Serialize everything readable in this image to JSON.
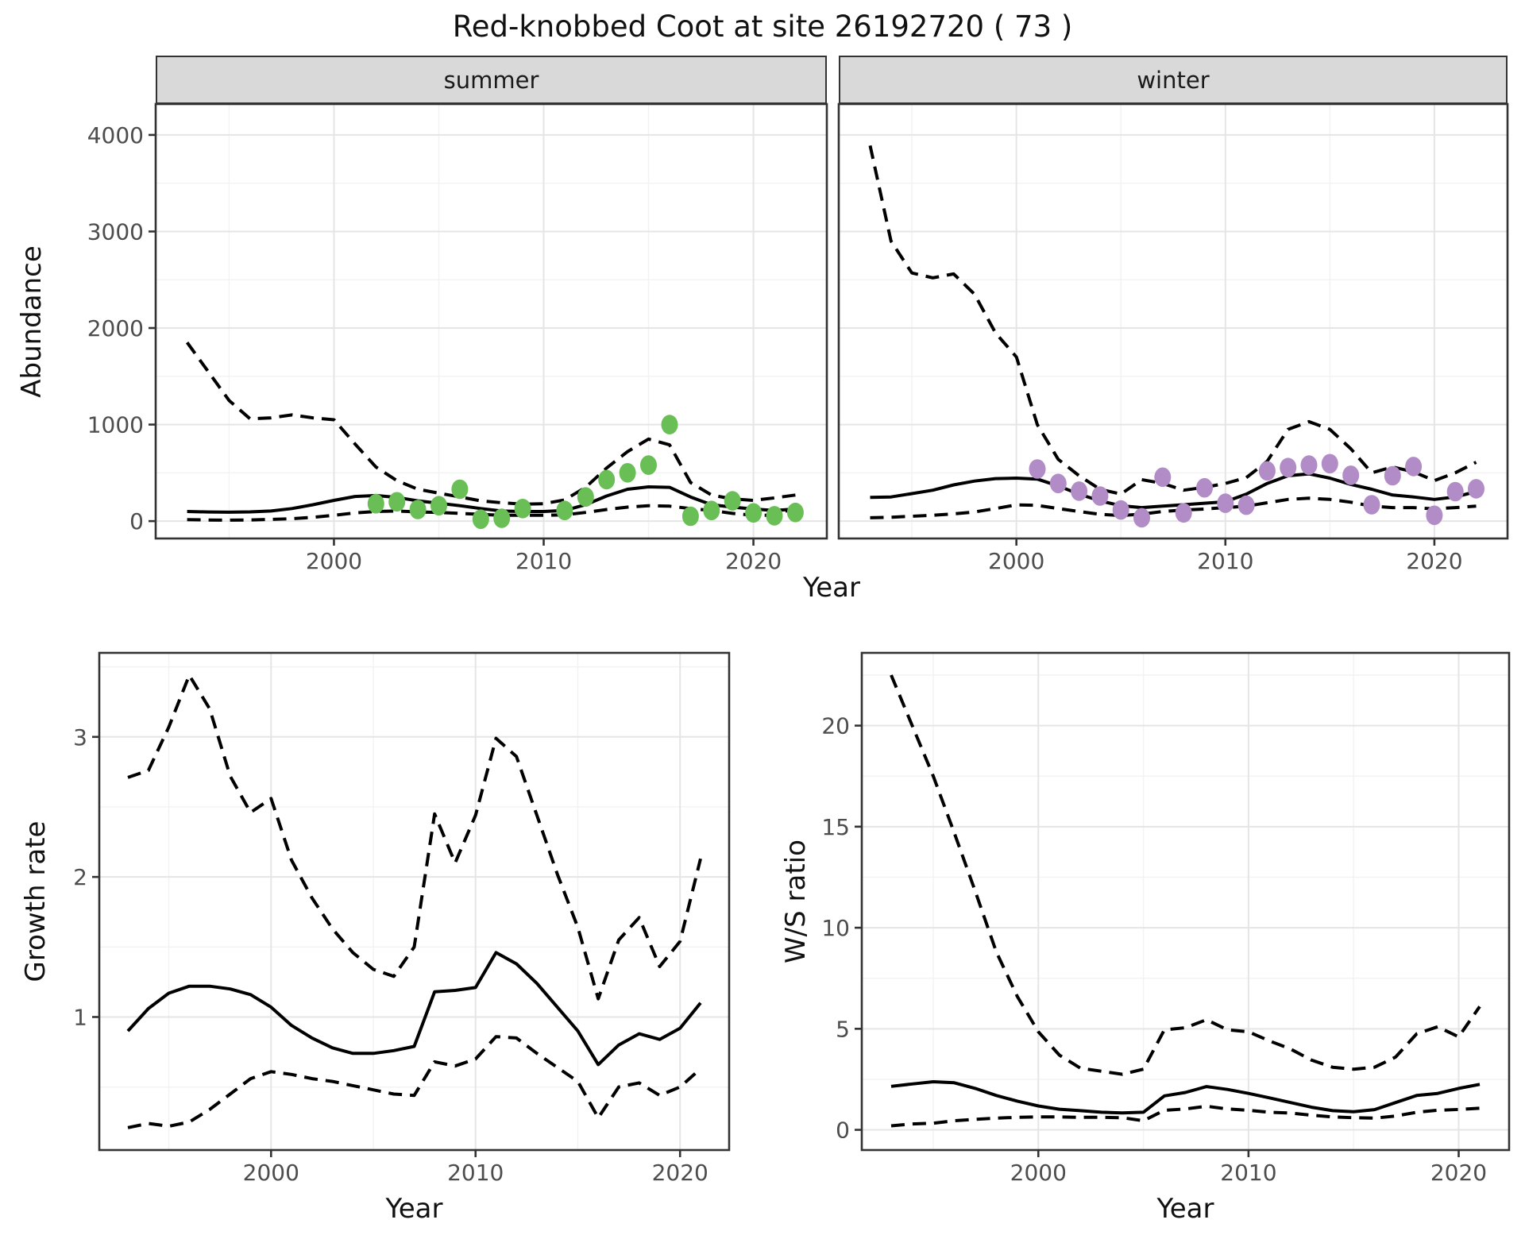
{
  "title": "Red-knobbed Coot at site 26192720 ( 73 )",
  "top_row": {
    "ylabel": "Abundance",
    "xlabel": "Year",
    "facets": [
      "summer",
      "winter"
    ]
  },
  "bottom_row": {
    "left_ylabel": "Growth rate",
    "right_ylabel": "W/S ratio",
    "xlabel": "Year"
  },
  "colors": {
    "line": "#000000",
    "summer_points": "#69be55",
    "winter_points": "#b18cc6",
    "strip_fill": "#d9d9d9",
    "panel_border": "#333333",
    "grid_major": "#e5e5e5",
    "grid_minor": "#f2f2f2",
    "tick_label": "#4d4d4d",
    "tick_mark": "#333333"
  },
  "chart_data": [
    {
      "id": "abundance_summer",
      "type": "line",
      "title": "summer",
      "xlabel": "Year",
      "ylabel": "Abundance",
      "xlim": [
        1991.5,
        2023.5
      ],
      "ylim": [
        -180,
        4320
      ],
      "xticks": [
        2000,
        2010,
        2020
      ],
      "xtick_labels": [
        "2000",
        "2010",
        "2020"
      ],
      "yticks": [
        0,
        1000,
        2000,
        3000,
        4000
      ],
      "ytick_labels": [
        "0",
        "1000",
        "2000",
        "3000",
        "4000"
      ],
      "grid": true,
      "legend": "none",
      "x": [
        1993,
        1994,
        1995,
        1996,
        1997,
        1998,
        1999,
        2000,
        2001,
        2002,
        2003,
        2004,
        2005,
        2006,
        2007,
        2008,
        2009,
        2010,
        2011,
        2012,
        2013,
        2014,
        2015,
        2016,
        2017,
        2018,
        2019,
        2020,
        2021,
        2022
      ],
      "series": [
        {
          "name": "upper_ci",
          "style": "dashed",
          "values": [
            1850,
            1550,
            1250,
            1060,
            1070,
            1100,
            1070,
            1050,
            800,
            560,
            420,
            330,
            290,
            250,
            210,
            190,
            175,
            180,
            220,
            350,
            550,
            720,
            850,
            790,
            400,
            270,
            230,
            215,
            240,
            270
          ]
        },
        {
          "name": "lower_ci",
          "style": "dashed",
          "values": [
            15,
            12,
            10,
            12,
            18,
            25,
            40,
            60,
            85,
            100,
            105,
            95,
            90,
            80,
            70,
            60,
            60,
            60,
            65,
            90,
            120,
            145,
            160,
            155,
            130,
            110,
            80,
            60,
            60,
            140
          ]
        },
        {
          "name": "mean",
          "style": "solid",
          "values": [
            100,
            95,
            92,
            96,
            105,
            130,
            170,
            215,
            255,
            265,
            245,
            210,
            185,
            160,
            130,
            105,
            100,
            100,
            110,
            170,
            260,
            330,
            355,
            350,
            250,
            170,
            145,
            125,
            110,
            125
          ]
        },
        {
          "name": "observed_counts",
          "points": true,
          "color": "#69be55",
          "x": [
            2002,
            2003,
            2004,
            2005,
            2006,
            2007,
            2008,
            2009,
            2011,
            2012,
            2013,
            2014,
            2015,
            2016,
            2017,
            2018,
            2019,
            2020,
            2021,
            2022
          ],
          "values": [
            180,
            200,
            120,
            160,
            330,
            20,
            30,
            130,
            110,
            250,
            430,
            500,
            580,
            1000,
            50,
            110,
            210,
            85,
            55,
            90
          ]
        }
      ]
    },
    {
      "id": "abundance_winter",
      "type": "line",
      "title": "winter",
      "xlabel": "Year",
      "ylabel": "Abundance",
      "xlim": [
        1991.5,
        2023.5
      ],
      "ylim": [
        -180,
        4320
      ],
      "xticks": [
        2000,
        2010,
        2020
      ],
      "xtick_labels": [
        "2000",
        "2010",
        "2020"
      ],
      "yticks": [
        0,
        1000,
        2000,
        3000,
        4000
      ],
      "ytick_labels": [
        "0",
        "1000",
        "2000",
        "3000",
        "4000"
      ],
      "grid": true,
      "legend": "none",
      "x": [
        1993,
        1994,
        1995,
        1996,
        1997,
        1998,
        1999,
        2000,
        2001,
        2002,
        2003,
        2004,
        2005,
        2006,
        2007,
        2008,
        2009,
        2010,
        2011,
        2012,
        2013,
        2014,
        2015,
        2016,
        2017,
        2018,
        2019,
        2020,
        2021,
        2022
      ],
      "series": [
        {
          "name": "upper_ci",
          "style": "dashed",
          "values": [
            3890,
            2900,
            2570,
            2520,
            2560,
            2350,
            1950,
            1700,
            1000,
            640,
            470,
            330,
            280,
            430,
            390,
            320,
            350,
            390,
            450,
            620,
            950,
            1030,
            950,
            750,
            500,
            560,
            510,
            420,
            500,
            610
          ]
        },
        {
          "name": "lower_ci",
          "style": "dashed",
          "values": [
            35,
            40,
            50,
            60,
            75,
            95,
            130,
            168,
            163,
            130,
            100,
            70,
            58,
            72,
            100,
            115,
            125,
            140,
            155,
            190,
            225,
            237,
            225,
            196,
            155,
            140,
            140,
            127,
            140,
            155
          ]
        },
        {
          "name": "mean",
          "style": "solid",
          "values": [
            245,
            250,
            285,
            320,
            375,
            415,
            440,
            445,
            435,
            365,
            280,
            210,
            160,
            140,
            155,
            170,
            185,
            200,
            280,
            390,
            470,
            490,
            445,
            380,
            330,
            270,
            250,
            225,
            250,
            305
          ]
        },
        {
          "name": "observed_counts",
          "points": true,
          "color": "#b18cc6",
          "x": [
            2001,
            2002,
            2003,
            2004,
            2005,
            2006,
            2007,
            2008,
            2009,
            2010,
            2011,
            2012,
            2013,
            2014,
            2015,
            2016,
            2017,
            2018,
            2019,
            2020,
            2021,
            2022
          ],
          "values": [
            540,
            390,
            310,
            260,
            115,
            35,
            455,
            85,
            345,
            185,
            165,
            520,
            555,
            580,
            595,
            475,
            170,
            470,
            565,
            60,
            305,
            335
          ]
        }
      ]
    },
    {
      "id": "growth_rate",
      "type": "line",
      "title": "",
      "xlabel": "Year",
      "ylabel": "Growth rate",
      "xlim": [
        1991.6,
        2022.4
      ],
      "ylim": [
        0.05,
        3.6
      ],
      "xticks": [
        2000,
        2010,
        2020
      ],
      "xtick_labels": [
        "2000",
        "2010",
        "2020"
      ],
      "yticks": [
        1,
        2,
        3
      ],
      "ytick_labels": [
        "1",
        "2",
        "3"
      ],
      "grid": true,
      "legend": "none",
      "x": [
        1993,
        1994,
        1995,
        1996,
        1997,
        1998,
        1999,
        2000,
        2001,
        2002,
        2003,
        2004,
        2005,
        2006,
        2007,
        2008,
        2009,
        2010,
        2011,
        2012,
        2013,
        2014,
        2015,
        2016,
        2017,
        2018,
        2019,
        2020,
        2021
      ],
      "series": [
        {
          "name": "upper_ci",
          "style": "dashed",
          "values": [
            2.71,
            2.76,
            3.07,
            3.44,
            3.2,
            2.72,
            2.46,
            2.56,
            2.12,
            1.85,
            1.63,
            1.46,
            1.34,
            1.29,
            1.5,
            2.45,
            2.1,
            2.44,
            2.99,
            2.86,
            2.44,
            2.02,
            1.64,
            1.13,
            1.55,
            1.71,
            1.36,
            1.54,
            2.13
          ]
        },
        {
          "name": "lower_ci",
          "style": "dashed",
          "values": [
            0.21,
            0.24,
            0.22,
            0.25,
            0.34,
            0.45,
            0.56,
            0.61,
            0.59,
            0.56,
            0.54,
            0.51,
            0.48,
            0.45,
            0.44,
            0.68,
            0.65,
            0.7,
            0.86,
            0.85,
            0.74,
            0.64,
            0.54,
            0.28,
            0.5,
            0.53,
            0.44,
            0.5,
            0.63
          ]
        },
        {
          "name": "mean",
          "style": "solid",
          "values": [
            0.9,
            1.06,
            1.17,
            1.22,
            1.22,
            1.2,
            1.16,
            1.07,
            0.94,
            0.85,
            0.78,
            0.74,
            0.74,
            0.76,
            0.79,
            1.18,
            1.19,
            1.21,
            1.46,
            1.38,
            1.24,
            1.07,
            0.9,
            0.66,
            0.8,
            0.88,
            0.84,
            0.92,
            1.1
          ]
        }
      ]
    },
    {
      "id": "ws_ratio",
      "type": "line",
      "title": "",
      "xlabel": "Year",
      "ylabel": "W/S ratio",
      "xlim": [
        1991.6,
        2022.4
      ],
      "ylim": [
        -1.0,
        23.6
      ],
      "xticks": [
        2000,
        2010,
        2020
      ],
      "xtick_labels": [
        "2000",
        "2010",
        "2020"
      ],
      "yticks": [
        0,
        5,
        10,
        15,
        20
      ],
      "ytick_labels": [
        "0",
        "5",
        "10",
        "15",
        "20"
      ],
      "grid": true,
      "legend": "none",
      "x": [
        1993,
        1994,
        1995,
        1996,
        1997,
        1998,
        1999,
        2000,
        2001,
        2002,
        2003,
        2004,
        2005,
        2006,
        2007,
        2008,
        2009,
        2010,
        2011,
        2012,
        2013,
        2014,
        2015,
        2016,
        2017,
        2018,
        2019,
        2020,
        2021
      ],
      "series": [
        {
          "name": "upper_ci",
          "style": "dashed",
          "values": [
            22.5,
            20.0,
            17.5,
            14.7,
            11.8,
            8.8,
            6.6,
            4.85,
            3.7,
            3.05,
            2.9,
            2.75,
            3.0,
            4.95,
            5.05,
            5.45,
            4.95,
            4.85,
            4.4,
            4.0,
            3.45,
            3.1,
            3.0,
            3.1,
            3.6,
            4.75,
            5.1,
            4.6,
            6.1
          ]
        },
        {
          "name": "lower_ci",
          "style": "dashed",
          "values": [
            0.2,
            0.29,
            0.33,
            0.45,
            0.52,
            0.58,
            0.62,
            0.64,
            0.64,
            0.62,
            0.62,
            0.6,
            0.45,
            0.97,
            1.03,
            1.17,
            1.03,
            0.97,
            0.87,
            0.83,
            0.72,
            0.64,
            0.6,
            0.58,
            0.68,
            0.87,
            0.97,
            1.01,
            1.07
          ]
        },
        {
          "name": "mean",
          "style": "solid",
          "values": [
            2.15,
            2.27,
            2.38,
            2.33,
            2.05,
            1.7,
            1.42,
            1.18,
            1.02,
            0.95,
            0.87,
            0.84,
            0.87,
            1.68,
            1.85,
            2.14,
            2.0,
            1.8,
            1.58,
            1.35,
            1.12,
            0.95,
            0.9,
            1.0,
            1.35,
            1.7,
            1.8,
            2.05,
            2.25
          ]
        }
      ]
    }
  ]
}
